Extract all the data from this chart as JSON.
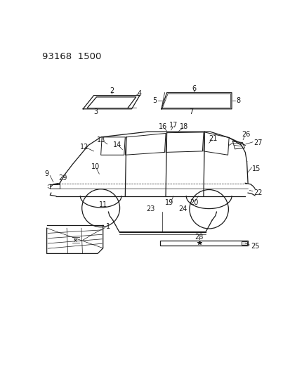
{
  "header": "93168  1500",
  "bg_color": "#ffffff",
  "line_color": "#1a1a1a",
  "lw": 0.9
}
